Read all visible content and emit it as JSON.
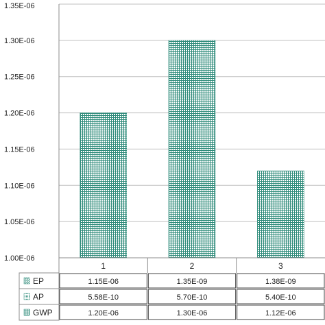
{
  "chart_data": {
    "type": "bar",
    "categories": [
      "1",
      "2",
      "3"
    ],
    "series": [
      {
        "name": "GWP",
        "values": [
          1.2e-06,
          1.3e-06,
          1.12e-06
        ]
      }
    ],
    "ylim": [
      1e-06,
      1.35e-06
    ],
    "yticks": [
      "1.00E-06",
      "1.05E-06",
      "1.10E-06",
      "1.15E-06",
      "1.20E-06",
      "1.25E-06",
      "1.30E-06",
      "1.35E-06"
    ],
    "grid": true,
    "bar_color": "#2e8b7a",
    "data_table": {
      "rows": [
        {
          "name": "EP",
          "cells": [
            "1.15E-06",
            "1.35E-09",
            "1.38E-09"
          ]
        },
        {
          "name": "AP",
          "cells": [
            "5.58E-10",
            "5.70E-10",
            "5.40E-10"
          ]
        },
        {
          "name": "GWP",
          "cells": [
            "1.20E-06",
            "1.30E-06",
            "1.12E-06"
          ]
        }
      ]
    }
  }
}
